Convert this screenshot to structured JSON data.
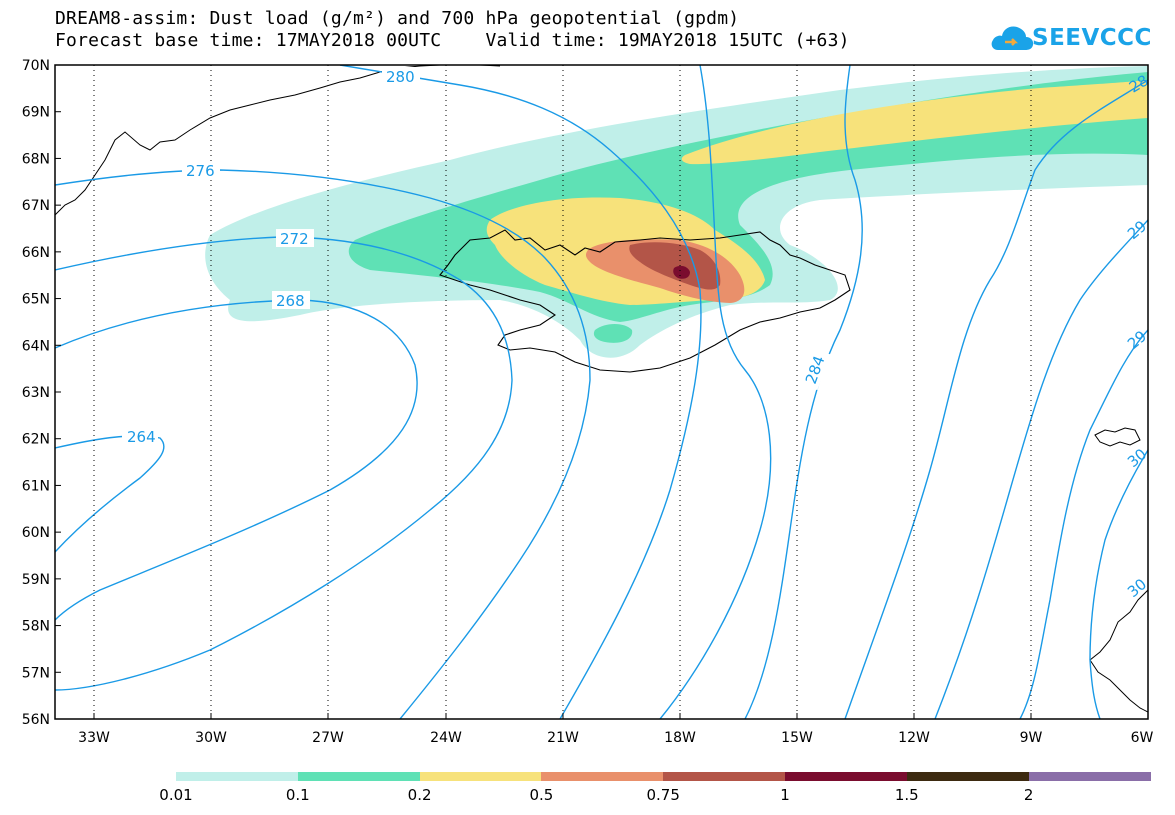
{
  "title_line1": "DREAM8-assim: Dust load (g/m²) and 700 hPa geopotential (gpdm)",
  "title_line2": "Forecast base time: 17MAY2018 00UTC    Valid time: 19MAY2018 15UTC (+63)",
  "logo_text": "SEEVCCC",
  "lat_labels": [
    "70N",
    "69N",
    "68N",
    "67N",
    "66N",
    "65N",
    "64N",
    "63N",
    "62N",
    "61N",
    "60N",
    "59N",
    "58N",
    "57N",
    "56N"
  ],
  "lon_labels": [
    "33W",
    "30W",
    "27W",
    "24W",
    "21W",
    "18W",
    "15W",
    "12W",
    "9W",
    "6W"
  ],
  "contour_labels": {
    "c264": "264",
    "c268": "268",
    "c272": "272",
    "c276": "276",
    "c280": "280",
    "c284": "284",
    "e1": "28",
    "e2": "29",
    "e3": "29",
    "e4": "30",
    "e5": "30"
  },
  "colorbar": {
    "labels": [
      "0.01",
      "0.1",
      "0.2",
      "0.5",
      "0.75",
      "1",
      "1.5",
      "2"
    ],
    "colors": [
      "#c0efe9",
      "#5fe1b5",
      "#f7e27b",
      "#e9906b",
      "#b35548",
      "#7a0c2e",
      "#3d2a10",
      "#8a6ea8"
    ]
  },
  "colors": {
    "contour": "#1a9ae6",
    "dust_01": "#c0efe9",
    "dust_1": "#5fe1b5",
    "dust_2": "#f7e27b",
    "dust_5": "#e9906b",
    "dust_75": "#b35548",
    "dust_100": "#7a0c2e"
  }
}
